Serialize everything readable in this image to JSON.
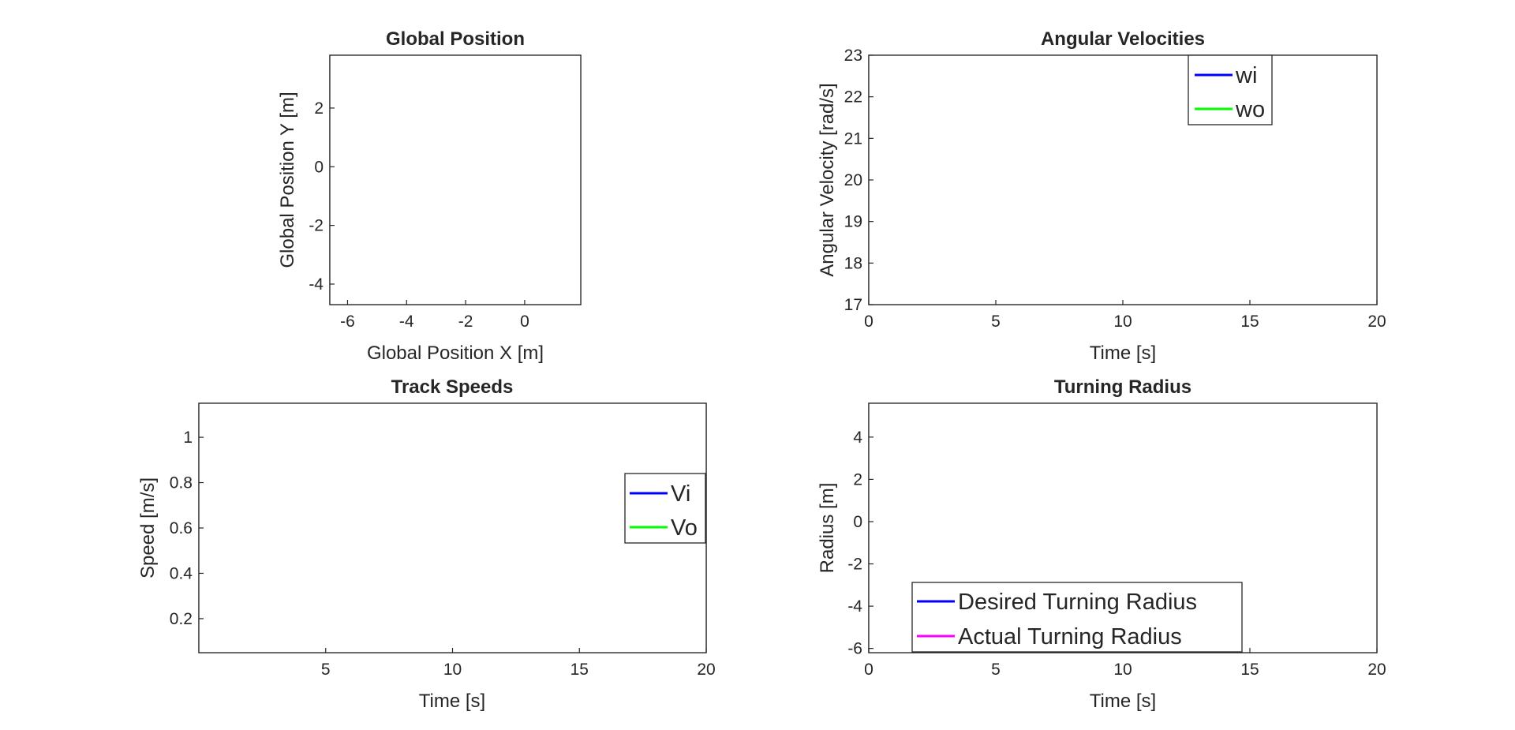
{
  "chart_data": [
    {
      "id": "global-position",
      "type": "line",
      "title": "Global Position",
      "xlabel": "Global Position X [m]",
      "ylabel": "Global Position Y [m]",
      "xlim": [
        -6.6,
        1.9
      ],
      "ylim": [
        -4.7,
        3.8
      ],
      "xticks": [
        -6,
        -4,
        -2,
        0
      ],
      "yticks": [
        -4,
        -2,
        0,
        2
      ],
      "xtick_labels": [
        "-6",
        "-4",
        "-2",
        "0"
      ],
      "ytick_labels": [
        "-4",
        "-2",
        "0",
        "2"
      ],
      "grid": true,
      "legend": null,
      "series": [
        {
          "color": "#ff0000",
          "x": [
            0,
            -0.1,
            -0.4,
            -1.0,
            -2.0,
            -3.0,
            -4.0,
            -4.8,
            -5.3,
            -5.7,
            -5.9,
            -5.9,
            -5.7,
            -5.3,
            -4.8,
            -4.0,
            -3.0,
            -2.0,
            -1.0,
            0.0,
            0.5,
            0.85,
            1.0,
            0.92,
            0.65,
            0.3,
            0.0,
            0.5,
            0.85,
            1.0,
            0.9,
            0.6,
            0.25,
            0.0
          ],
          "y": [
            0.05,
            0.05,
            0.05,
            0.05,
            0.05,
            0.06,
            0.06,
            0.08,
            0.2,
            0.5,
            0.85,
            1.3,
            1.65,
            1.93,
            2.05,
            2.08,
            2.08,
            2.08,
            2.08,
            2.05,
            1.9,
            1.5,
            1.0,
            0.55,
            0.2,
            0.02,
            0.0,
            -0.25,
            -0.65,
            -1.2,
            -1.75,
            -2.2,
            -2.55,
            -2.8
          ]
        }
      ]
    },
    {
      "id": "angular-velocities",
      "type": "line",
      "title": "Angular Velocities",
      "xlabel": "Time [s]",
      "ylabel": "Angular Velocity [rad/s]",
      "xlim": [
        0,
        20
      ],
      "ylim": [
        17,
        23
      ],
      "xticks": [
        0,
        5,
        10,
        15,
        20
      ],
      "yticks": [
        17,
        18,
        19,
        20,
        21,
        22,
        23
      ],
      "xtick_labels": [
        "0",
        "5",
        "10",
        "15",
        "20"
      ],
      "ytick_labels": [
        "17",
        "18",
        "19",
        "20",
        "21",
        "22",
        "23"
      ],
      "grid": true,
      "legend": "top-right",
      "series": [
        {
          "name": "wi",
          "color": "#0000ff",
          "x": [
            1.15,
            1.4,
            1.8,
            2.3,
            2.8,
            3.15,
            3.5,
            4.0,
            4.5,
            5.0,
            5.5,
            6.0,
            7.0,
            8.0,
            8.3,
            8.7,
            9.2,
            9.8,
            10.5,
            11.1,
            11.4,
            11.8,
            12.3,
            13.0,
            14.0,
            16.0,
            16.3,
            16.7,
            17.2,
            17.9,
            18.2,
            18.6,
            19.0,
            19.5,
            20.0
          ],
          "y": [
            17.0,
            17.45,
            17.75,
            17.9,
            17.97,
            18.0,
            19.0,
            19.55,
            19.8,
            19.92,
            19.97,
            20.0,
            20.0,
            20.0,
            19.0,
            18.45,
            18.2,
            18.07,
            18.02,
            18.0,
            19.0,
            19.55,
            19.85,
            19.97,
            20.0,
            20.0,
            21.0,
            21.55,
            21.85,
            22.0,
            21.5,
            21.05,
            20.85,
            20.73,
            20.68
          ]
        },
        {
          "name": "wo",
          "color": "#00ff00",
          "x": [
            0.6,
            0.8,
            1.0,
            1.3,
            1.7,
            2.2,
            2.7,
            3.15,
            3.5,
            4.0,
            4.5,
            5.0,
            5.5,
            6.0,
            7.0,
            8.0,
            8.3,
            8.7,
            9.2,
            9.8,
            10.5,
            11.1,
            11.4,
            11.8,
            12.3,
            13.0,
            14.0,
            16.0,
            16.3,
            16.7,
            17.2,
            17.9,
            18.2,
            18.6,
            19.0,
            19.5,
            20.0
          ],
          "y": [
            17.0,
            19.3,
            20.6,
            21.3,
            21.7,
            21.9,
            21.97,
            22.0,
            21.0,
            20.45,
            20.2,
            20.08,
            20.03,
            20.0,
            20.0,
            20.0,
            21.0,
            21.55,
            21.8,
            21.93,
            21.98,
            22.0,
            21.0,
            20.45,
            20.15,
            20.03,
            20.0,
            20.0,
            19.0,
            18.45,
            18.15,
            18.0,
            18.5,
            18.95,
            19.15,
            19.28,
            19.33
          ]
        }
      ]
    },
    {
      "id": "track-speeds",
      "type": "line",
      "title": "Track Speeds",
      "xlabel": "Time [s]",
      "ylabel": "Speed [m/s]",
      "xlim": [
        0,
        20
      ],
      "ylim": [
        0.05,
        1.15
      ],
      "xticks": [
        5,
        10,
        15,
        20
      ],
      "yticks": [
        0.2,
        0.4,
        0.6,
        0.8,
        1.0
      ],
      "xtick_labels": [
        "5",
        "10",
        "15",
        "20"
      ],
      "ytick_labels": [
        "0.2",
        "0.4",
        "0.6",
        "0.8",
        "1"
      ],
      "grid": true,
      "legend": "right",
      "series": [
        {
          "name": "Vi",
          "color": "#0000ff",
          "x": [
            0.0,
            0.15,
            0.4,
            0.7,
            1.0,
            1.5,
            2.0,
            2.5,
            3.15,
            3.5,
            4.0,
            4.5,
            5.0,
            6.0,
            8.0,
            8.3,
            8.7,
            9.2,
            9.8,
            10.5,
            11.1,
            11.4,
            11.8,
            12.3,
            13.0,
            14.0,
            16.0,
            16.3,
            16.7,
            17.2,
            17.9,
            18.2,
            18.6,
            19.0,
            19.5,
            20.0
          ],
          "y": [
            0.08,
            0.3,
            0.55,
            0.7,
            0.78,
            0.85,
            0.88,
            0.895,
            0.9,
            0.95,
            0.978,
            0.99,
            0.996,
            1.0,
            1.0,
            0.95,
            0.922,
            0.91,
            0.903,
            0.901,
            0.9,
            0.95,
            0.978,
            0.992,
            0.998,
            1.0,
            1.0,
            1.05,
            1.078,
            1.092,
            1.1,
            1.075,
            1.052,
            1.042,
            1.036,
            1.034
          ]
        },
        {
          "name": "Vo",
          "color": "#00ff00",
          "x": [
            0.0,
            0.1,
            0.25,
            0.45,
            0.7,
            1.0,
            1.5,
            2.0,
            2.5,
            3.15,
            3.5,
            4.0,
            4.5,
            5.0,
            6.0,
            8.0,
            8.3,
            8.7,
            9.2,
            9.8,
            10.5,
            11.1,
            11.4,
            11.8,
            12.3,
            13.0,
            14.0,
            16.0,
            16.3,
            16.7,
            17.2,
            17.9,
            18.2,
            18.6,
            19.0,
            19.5,
            20.0
          ],
          "y": [
            0.07,
            0.3,
            0.6,
            0.85,
            0.98,
            1.05,
            1.085,
            1.095,
            1.098,
            1.1,
            1.05,
            1.022,
            1.01,
            1.004,
            1.0,
            1.0,
            1.05,
            1.078,
            1.09,
            1.097,
            1.099,
            1.1,
            1.05,
            1.022,
            1.008,
            1.002,
            1.0,
            1.0,
            0.95,
            0.922,
            0.908,
            0.9,
            0.925,
            0.948,
            0.958,
            0.964,
            0.966
          ]
        }
      ]
    },
    {
      "id": "turning-radius",
      "type": "line",
      "title": "Turning Radius",
      "xlabel": "Time [s]",
      "ylabel": "Radius [m]",
      "xlim": [
        0,
        20
      ],
      "ylim": [
        -6.2,
        5.6
      ],
      "xticks": [
        0,
        5,
        10,
        15,
        20
      ],
      "yticks": [
        -6,
        -4,
        -2,
        0,
        2,
        4
      ],
      "xtick_labels": [
        "0",
        "5",
        "10",
        "15",
        "20"
      ],
      "ytick_labels": [
        "-6",
        "-4",
        "-2",
        "0",
        "2",
        "4"
      ],
      "grid": true,
      "legend": "bottom-left",
      "series": [
        {
          "name": "Desired Turning Radius",
          "color": "#0000ff",
          "segments": [
            {
              "x": [
                0.0,
                3.15,
                3.15
              ],
              "y": [
                1.0,
                1.0,
                5.6
              ]
            },
            {
              "x": [
                8.0,
                8.0,
                11.1,
                11.1
              ],
              "y": [
                5.6,
                1.0,
                1.0,
                5.6
              ]
            },
            {
              "x": [
                16.0,
                16.0,
                17.9,
                17.9,
                20.0
              ],
              "y": [
                -6.2,
                -1.0,
                -1.0,
                -3.0,
                -3.0
              ]
            }
          ]
        },
        {
          "name": "Actual Turning Radius",
          "color": "#ff00ff",
          "segments": [
            {
              "x": [
                0.0,
                0.2,
                0.4,
                0.55,
                0.7,
                0.8,
                0.87,
                0.92
              ],
              "y": [
                0.0,
                -0.02,
                -0.15,
                -0.5,
                -1.3,
                -2.6,
                -4.2,
                -6.2
              ]
            },
            {
              "x": [
                0.98,
                1.02,
                1.1,
                1.2,
                1.4,
                1.7,
                2.2,
                2.8,
                3.15,
                3.3,
                3.5,
                3.7,
                3.85,
                3.95
              ],
              "y": [
                5.6,
                3.2,
                2.0,
                1.5,
                1.2,
                1.07,
                1.02,
                1.0,
                1.0,
                1.3,
                2.0,
                3.1,
                4.4,
                5.6
              ]
            },
            {
              "x": [
                8.0,
                8.1,
                8.25,
                8.5,
                8.8,
                9.2,
                9.8,
                10.5,
                11.1,
                11.3,
                11.5,
                11.7,
                11.85,
                11.95
              ],
              "y": [
                5.6,
                3.1,
                2.0,
                1.5,
                1.25,
                1.1,
                1.03,
                1.0,
                1.0,
                1.4,
                2.1,
                3.2,
                4.4,
                5.6
              ]
            },
            {
              "x": [
                16.0,
                16.03,
                16.08,
                16.15,
                16.3,
                16.5,
                16.8,
                17.2,
                17.6,
                17.9,
                18.2,
                18.6,
                19.0,
                19.5,
                20.0
              ],
              "y": [
                -6.2,
                -4.0,
                -2.8,
                -2.1,
                -1.6,
                -1.3,
                -1.12,
                -1.04,
                -1.01,
                -1.0,
                -1.4,
                -2.0,
                -2.5,
                -2.85,
                -3.0
              ]
            }
          ]
        }
      ]
    }
  ]
}
